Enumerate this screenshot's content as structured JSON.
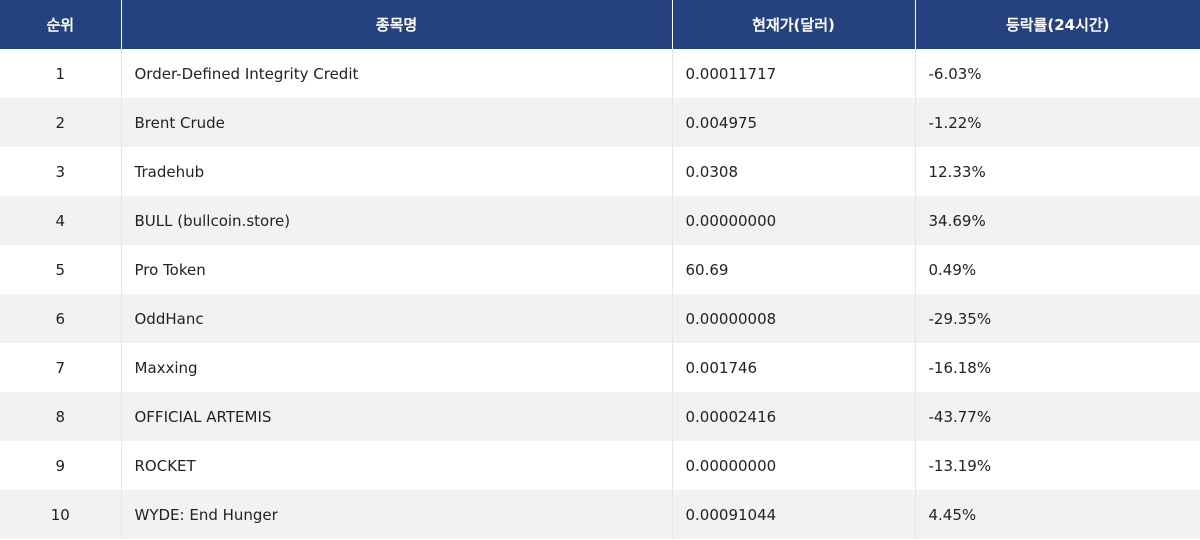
{
  "table": {
    "headers": [
      "순위",
      "종목명",
      "현재가(달러)",
      "등락률(24시간)"
    ],
    "rows": [
      [
        "1",
        "Order-Defined Integrity Credit",
        "0.00011717",
        "-6.03%"
      ],
      [
        "2",
        "Brent Crude",
        "0.004975",
        "-1.22%"
      ],
      [
        "3",
        "Tradehub",
        "0.0308",
        "12.33%"
      ],
      [
        "4",
        "BULL (bullcoin.store)",
        "0.00000000",
        "34.69%"
      ],
      [
        "5",
        "Pro Token",
        "60.69",
        "0.49%"
      ],
      [
        "6",
        "OddHanc",
        "0.00000008",
        "-29.35%"
      ],
      [
        "7",
        "Maxxing",
        "0.001746",
        "-16.18%"
      ],
      [
        "8",
        "OFFICIAL ARTEMIS",
        "0.00002416",
        "-43.77%"
      ],
      [
        "9",
        "ROCKET",
        "0.00000000",
        "-13.19%"
      ],
      [
        "10",
        "WYDE: End Hunger",
        "0.00091044",
        "4.45%"
      ]
    ]
  }
}
